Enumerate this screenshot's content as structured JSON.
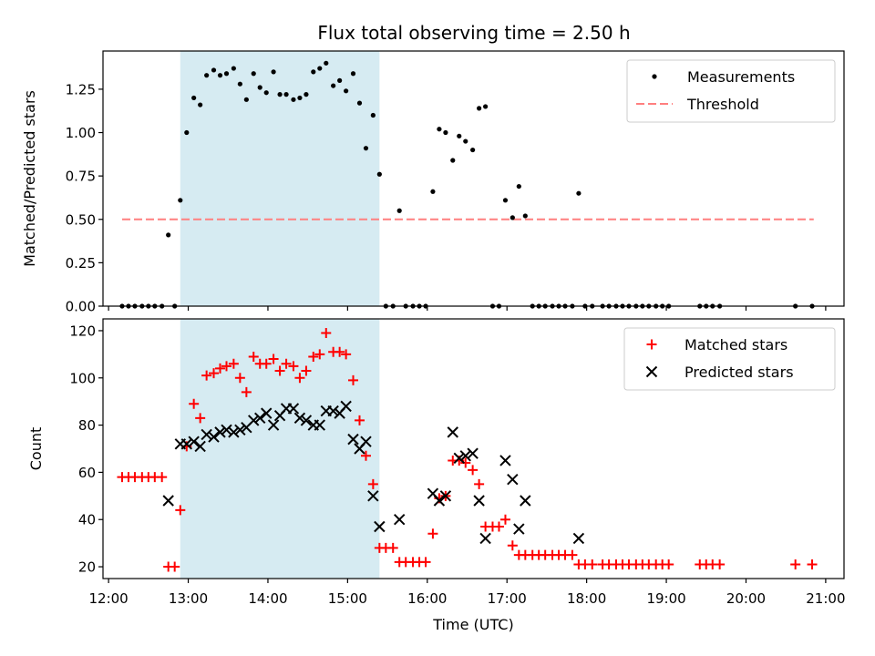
{
  "title": "Flux total observing time = 2.50 h",
  "colors": {
    "measurement": "#000000",
    "threshold": "#ff7f7f",
    "matched": "#ff0000",
    "predicted": "#000000",
    "span_fill": "#add8e6"
  },
  "chart_data": [
    {
      "type": "scatter",
      "ylabel": "Matched/Predicted stars",
      "xlabel": "",
      "xlim": [
        11.93,
        21.23
      ],
      "ylim": [
        0,
        1.47
      ],
      "yticks": [
        0,
        0.25,
        0.5,
        0.75,
        1.0,
        1.25
      ],
      "ytick_labels": [
        "0.00",
        "0.25",
        "0.50",
        "0.75",
        "1.00",
        "1.25"
      ],
      "shaded_span": [
        12.9,
        15.4
      ],
      "legend_position": "top-right",
      "threshold": {
        "name": "Threshold",
        "value": 0.5,
        "x_range": [
          12.17,
          20.85
        ]
      },
      "series": [
        {
          "name": "Measurements",
          "marker": "dot",
          "points": [
            [
              12.17,
              0
            ],
            [
              12.25,
              0
            ],
            [
              12.33,
              0
            ],
            [
              12.42,
              0
            ],
            [
              12.5,
              0
            ],
            [
              12.58,
              0
            ],
            [
              12.67,
              0
            ],
            [
              12.75,
              0.41
            ],
            [
              12.83,
              0
            ],
            [
              12.9,
              0.61
            ],
            [
              12.98,
              1.0
            ],
            [
              13.07,
              1.2
            ],
            [
              13.15,
              1.16
            ],
            [
              13.23,
              1.33
            ],
            [
              13.32,
              1.36
            ],
            [
              13.4,
              1.33
            ],
            [
              13.48,
              1.34
            ],
            [
              13.57,
              1.37
            ],
            [
              13.65,
              1.28
            ],
            [
              13.73,
              1.19
            ],
            [
              13.82,
              1.34
            ],
            [
              13.9,
              1.26
            ],
            [
              13.98,
              1.23
            ],
            [
              14.07,
              1.35
            ],
            [
              14.15,
              1.22
            ],
            [
              14.23,
              1.22
            ],
            [
              14.32,
              1.19
            ],
            [
              14.4,
              1.2
            ],
            [
              14.48,
              1.22
            ],
            [
              14.57,
              1.35
            ],
            [
              14.65,
              1.37
            ],
            [
              14.73,
              1.4
            ],
            [
              14.82,
              1.27
            ],
            [
              14.9,
              1.3
            ],
            [
              14.98,
              1.24
            ],
            [
              15.07,
              1.34
            ],
            [
              15.15,
              1.17
            ],
            [
              15.23,
              0.91
            ],
            [
              15.32,
              1.1
            ],
            [
              15.4,
              0.76
            ],
            [
              15.48,
              0
            ],
            [
              15.57,
              0
            ],
            [
              15.65,
              0.55
            ],
            [
              15.73,
              0
            ],
            [
              15.82,
              0
            ],
            [
              15.9,
              0
            ],
            [
              15.98,
              0
            ],
            [
              16.07,
              0.66
            ],
            [
              16.15,
              1.02
            ],
            [
              16.23,
              1.0
            ],
            [
              16.32,
              0.84
            ],
            [
              16.4,
              0.98
            ],
            [
              16.48,
              0.95
            ],
            [
              16.57,
              0.9
            ],
            [
              16.65,
              1.14
            ],
            [
              16.73,
              1.15
            ],
            [
              16.82,
              0
            ],
            [
              16.9,
              0
            ],
            [
              16.98,
              0.61
            ],
            [
              17.07,
              0.51
            ],
            [
              17.15,
              0.69
            ],
            [
              17.23,
              0.52
            ],
            [
              17.32,
              0
            ],
            [
              17.4,
              0
            ],
            [
              17.48,
              0
            ],
            [
              17.57,
              0
            ],
            [
              17.65,
              0
            ],
            [
              17.73,
              0
            ],
            [
              17.82,
              0
            ],
            [
              17.9,
              0.65
            ],
            [
              17.98,
              0
            ],
            [
              18.07,
              0
            ],
            [
              18.2,
              0
            ],
            [
              18.28,
              0
            ],
            [
              18.37,
              0
            ],
            [
              18.45,
              0
            ],
            [
              18.53,
              0
            ],
            [
              18.62,
              0
            ],
            [
              18.7,
              0
            ],
            [
              18.78,
              0
            ],
            [
              18.87,
              0
            ],
            [
              18.95,
              0
            ],
            [
              19.03,
              0
            ],
            [
              19.42,
              0
            ],
            [
              19.5,
              0
            ],
            [
              19.58,
              0
            ],
            [
              19.67,
              0
            ],
            [
              20.62,
              0
            ],
            [
              20.83,
              0
            ]
          ]
        }
      ]
    },
    {
      "type": "scatter",
      "ylabel": "Count",
      "xlabel": "Time (UTC)",
      "xlim": [
        11.93,
        21.23
      ],
      "ylim": [
        15,
        125
      ],
      "yticks": [
        20,
        40,
        60,
        80,
        100,
        120
      ],
      "ytick_labels": [
        "20",
        "40",
        "60",
        "80",
        "100",
        "120"
      ],
      "xticks": [
        12,
        13,
        14,
        15,
        16,
        17,
        18,
        19,
        20,
        21
      ],
      "xtick_labels": [
        "12:00",
        "13:00",
        "14:00",
        "15:00",
        "16:00",
        "17:00",
        "18:00",
        "19:00",
        "20:00",
        "21:00"
      ],
      "shaded_span": [
        12.9,
        15.4
      ],
      "legend_position": "top-right",
      "series": [
        {
          "name": "Matched stars",
          "marker": "plus",
          "points": [
            [
              12.17,
              58
            ],
            [
              12.25,
              58
            ],
            [
              12.33,
              58
            ],
            [
              12.42,
              58
            ],
            [
              12.5,
              58
            ],
            [
              12.58,
              58
            ],
            [
              12.67,
              58
            ],
            [
              12.75,
              20
            ],
            [
              12.83,
              20
            ],
            [
              12.9,
              44
            ],
            [
              12.98,
              71
            ],
            [
              13.07,
              89
            ],
            [
              13.15,
              83
            ],
            [
              13.23,
              101
            ],
            [
              13.32,
              102
            ],
            [
              13.4,
              104
            ],
            [
              13.48,
              105
            ],
            [
              13.57,
              106
            ],
            [
              13.65,
              100
            ],
            [
              13.73,
              94
            ],
            [
              13.82,
              109
            ],
            [
              13.9,
              106
            ],
            [
              13.98,
              106
            ],
            [
              14.07,
              108
            ],
            [
              14.15,
              103
            ],
            [
              14.23,
              106
            ],
            [
              14.32,
              105
            ],
            [
              14.4,
              100
            ],
            [
              14.48,
              103
            ],
            [
              14.57,
              109
            ],
            [
              14.65,
              110
            ],
            [
              14.73,
              119
            ],
            [
              14.82,
              111
            ],
            [
              14.9,
              111
            ],
            [
              14.98,
              110
            ],
            [
              15.07,
              99
            ],
            [
              15.15,
              82
            ],
            [
              15.23,
              67
            ],
            [
              15.32,
              55
            ],
            [
              15.4,
              28
            ],
            [
              15.48,
              28
            ],
            [
              15.57,
              28
            ],
            [
              15.65,
              22
            ],
            [
              15.73,
              22
            ],
            [
              15.82,
              22
            ],
            [
              15.9,
              22
            ],
            [
              15.98,
              22
            ],
            [
              16.07,
              34
            ],
            [
              16.15,
              49
            ],
            [
              16.23,
              50
            ],
            [
              16.32,
              65
            ],
            [
              16.4,
              65
            ],
            [
              16.48,
              64
            ],
            [
              16.57,
              61
            ],
            [
              16.65,
              55
            ],
            [
              16.73,
              37
            ],
            [
              16.82,
              37
            ],
            [
              16.9,
              37
            ],
            [
              16.98,
              40
            ],
            [
              17.07,
              29
            ],
            [
              17.15,
              25
            ],
            [
              17.23,
              25
            ],
            [
              17.32,
              25
            ],
            [
              17.4,
              25
            ],
            [
              17.48,
              25
            ],
            [
              17.57,
              25
            ],
            [
              17.65,
              25
            ],
            [
              17.73,
              25
            ],
            [
              17.82,
              25
            ],
            [
              17.9,
              21
            ],
            [
              17.98,
              21
            ],
            [
              18.07,
              21
            ],
            [
              18.2,
              21
            ],
            [
              18.28,
              21
            ],
            [
              18.37,
              21
            ],
            [
              18.45,
              21
            ],
            [
              18.53,
              21
            ],
            [
              18.62,
              21
            ],
            [
              18.7,
              21
            ],
            [
              18.78,
              21
            ],
            [
              18.87,
              21
            ],
            [
              18.95,
              21
            ],
            [
              19.03,
              21
            ],
            [
              19.42,
              21
            ],
            [
              19.5,
              21
            ],
            [
              19.58,
              21
            ],
            [
              19.67,
              21
            ],
            [
              20.62,
              21
            ],
            [
              20.83,
              21
            ]
          ]
        },
        {
          "name": "Predicted stars",
          "marker": "x",
          "points": [
            [
              12.75,
              48
            ],
            [
              12.9,
              72
            ],
            [
              12.98,
              72
            ],
            [
              13.07,
              73
            ],
            [
              13.15,
              71
            ],
            [
              13.23,
              76
            ],
            [
              13.32,
              75
            ],
            [
              13.4,
              77
            ],
            [
              13.48,
              78
            ],
            [
              13.57,
              77
            ],
            [
              13.65,
              78
            ],
            [
              13.73,
              79
            ],
            [
              13.82,
              82
            ],
            [
              13.9,
              83
            ],
            [
              13.98,
              85
            ],
            [
              14.07,
              80
            ],
            [
              14.15,
              84
            ],
            [
              14.23,
              87
            ],
            [
              14.32,
              87
            ],
            [
              14.4,
              83
            ],
            [
              14.48,
              82
            ],
            [
              14.57,
              80
            ],
            [
              14.65,
              80
            ],
            [
              14.73,
              86
            ],
            [
              14.82,
              86
            ],
            [
              14.9,
              85
            ],
            [
              14.98,
              88
            ],
            [
              15.07,
              74
            ],
            [
              15.15,
              70
            ],
            [
              15.23,
              73
            ],
            [
              15.32,
              50
            ],
            [
              15.4,
              37
            ],
            [
              15.65,
              40
            ],
            [
              16.07,
              51
            ],
            [
              16.15,
              48
            ],
            [
              16.23,
              50
            ],
            [
              16.32,
              77
            ],
            [
              16.4,
              66
            ],
            [
              16.48,
              67
            ],
            [
              16.57,
              68
            ],
            [
              16.65,
              48
            ],
            [
              16.73,
              32
            ],
            [
              16.98,
              65
            ],
            [
              17.07,
              57
            ],
            [
              17.15,
              36
            ],
            [
              17.23,
              48
            ],
            [
              17.9,
              32
            ]
          ]
        }
      ]
    }
  ]
}
